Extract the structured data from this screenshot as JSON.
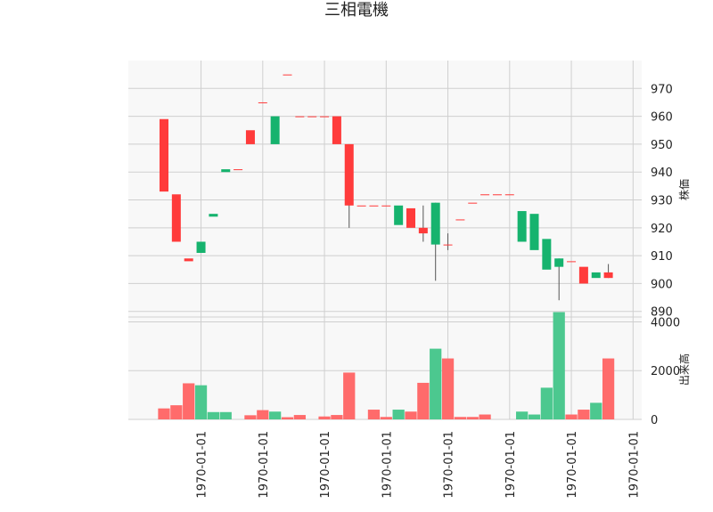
{
  "chart_data": {
    "type": "candlestick",
    "title": "三相電機",
    "price_ylabel": "株価",
    "volume_ylabel": "出来高",
    "price_ylim": [
      888,
      980
    ],
    "volume_ylim": [
      0,
      4200
    ],
    "price_ticks": [
      890,
      900,
      910,
      920,
      930,
      940,
      950,
      960,
      970
    ],
    "volume_ticks": [
      0,
      2000,
      4000
    ],
    "x_tick_indices": [
      3,
      8,
      13,
      18,
      23,
      28,
      33,
      38
    ],
    "x_tick_labels": [
      "1970-01-01",
      "1970-01-01",
      "1970-01-01",
      "1970-01-01",
      "1970-01-01",
      "1970-01-01",
      "1970-01-01",
      "1970-01-01"
    ],
    "grid": true,
    "up_color": "#16b36e",
    "down_color": "#ff3b3b",
    "up_volume_color": "#4cc88f",
    "down_volume_color": "#ff6b6b",
    "candles": [
      {
        "open": 959,
        "close": 933,
        "high": 959,
        "low": 933,
        "volume": 450
      },
      {
        "open": 932,
        "close": 915,
        "high": 932,
        "low": 915,
        "volume": 580
      },
      {
        "open": 909,
        "close": 908,
        "high": 909,
        "low": 908,
        "volume": 1480
      },
      {
        "open": 911,
        "close": 915,
        "high": 915,
        "low": 911,
        "volume": 1400
      },
      {
        "open": 924,
        "close": 925,
        "high": 925,
        "low": 924,
        "volume": 300
      },
      {
        "open": 940,
        "close": 941,
        "high": 941,
        "low": 940,
        "volume": 300
      },
      {
        "open": 941,
        "close": 941,
        "high": 941,
        "low": 941,
        "volume": 0
      },
      {
        "open": 955,
        "close": 950,
        "high": 955,
        "low": 950,
        "volume": 170
      },
      {
        "open": 965,
        "close": 965,
        "high": 965,
        "low": 965,
        "volume": 380
      },
      {
        "open": 950,
        "close": 960,
        "high": 960,
        "low": 950,
        "volume": 320
      },
      {
        "open": 975,
        "close": 975,
        "high": 975,
        "low": 975,
        "volume": 90
      },
      {
        "open": 960,
        "close": 960,
        "high": 960,
        "low": 960,
        "volume": 180
      },
      {
        "open": 960,
        "close": 960,
        "high": 960,
        "low": 960,
        "volume": 0
      },
      {
        "open": 960,
        "close": 960,
        "high": 960,
        "low": 960,
        "volume": 120
      },
      {
        "open": 960,
        "close": 950,
        "high": 960,
        "low": 950,
        "volume": 180
      },
      {
        "open": 950,
        "close": 928,
        "high": 950,
        "low": 920,
        "volume": 1920
      },
      {
        "open": 928,
        "close": 928,
        "high": 928,
        "low": 928,
        "volume": 0
      },
      {
        "open": 928,
        "close": 928,
        "high": 928,
        "low": 928,
        "volume": 400
      },
      {
        "open": 928,
        "close": 928,
        "high": 928,
        "low": 928,
        "volume": 100
      },
      {
        "open": 921,
        "close": 928,
        "high": 928,
        "low": 921,
        "volume": 400
      },
      {
        "open": 927,
        "close": 920,
        "high": 927,
        "low": 920,
        "volume": 320
      },
      {
        "open": 920,
        "close": 918,
        "high": 928,
        "low": 915,
        "volume": 1500
      },
      {
        "open": 914,
        "close": 929,
        "high": 929,
        "low": 901,
        "volume": 2900
      },
      {
        "open": 914,
        "close": 914,
        "high": 918,
        "low": 912,
        "volume": 2500
      },
      {
        "open": 923,
        "close": 923,
        "high": 923,
        "low": 923,
        "volume": 100
      },
      {
        "open": 929,
        "close": 929,
        "high": 929,
        "low": 929,
        "volume": 100
      },
      {
        "open": 932,
        "close": 932,
        "high": 932,
        "low": 932,
        "volume": 200
      },
      {
        "open": 932,
        "close": 932,
        "high": 932,
        "low": 932,
        "volume": 0
      },
      {
        "open": 932,
        "close": 932,
        "high": 932,
        "low": 932,
        "volume": 0
      },
      {
        "open": 915,
        "close": 926,
        "high": 926,
        "low": 915,
        "volume": 320
      },
      {
        "open": 912,
        "close": 925,
        "high": 925,
        "low": 912,
        "volume": 200
      },
      {
        "open": 905,
        "close": 916,
        "high": 916,
        "low": 905,
        "volume": 1300
      },
      {
        "open": 906,
        "close": 909,
        "high": 909,
        "low": 894,
        "volume": 4400
      },
      {
        "open": 908,
        "close": 908,
        "high": 908,
        "low": 908,
        "volume": 200
      },
      {
        "open": 906,
        "close": 900,
        "high": 906,
        "low": 900,
        "volume": 400
      },
      {
        "open": 902,
        "close": 904,
        "high": 904,
        "low": 902,
        "volume": 680
      },
      {
        "open": 904,
        "close": 902,
        "high": 907,
        "low": 902,
        "volume": 2500
      }
    ]
  }
}
